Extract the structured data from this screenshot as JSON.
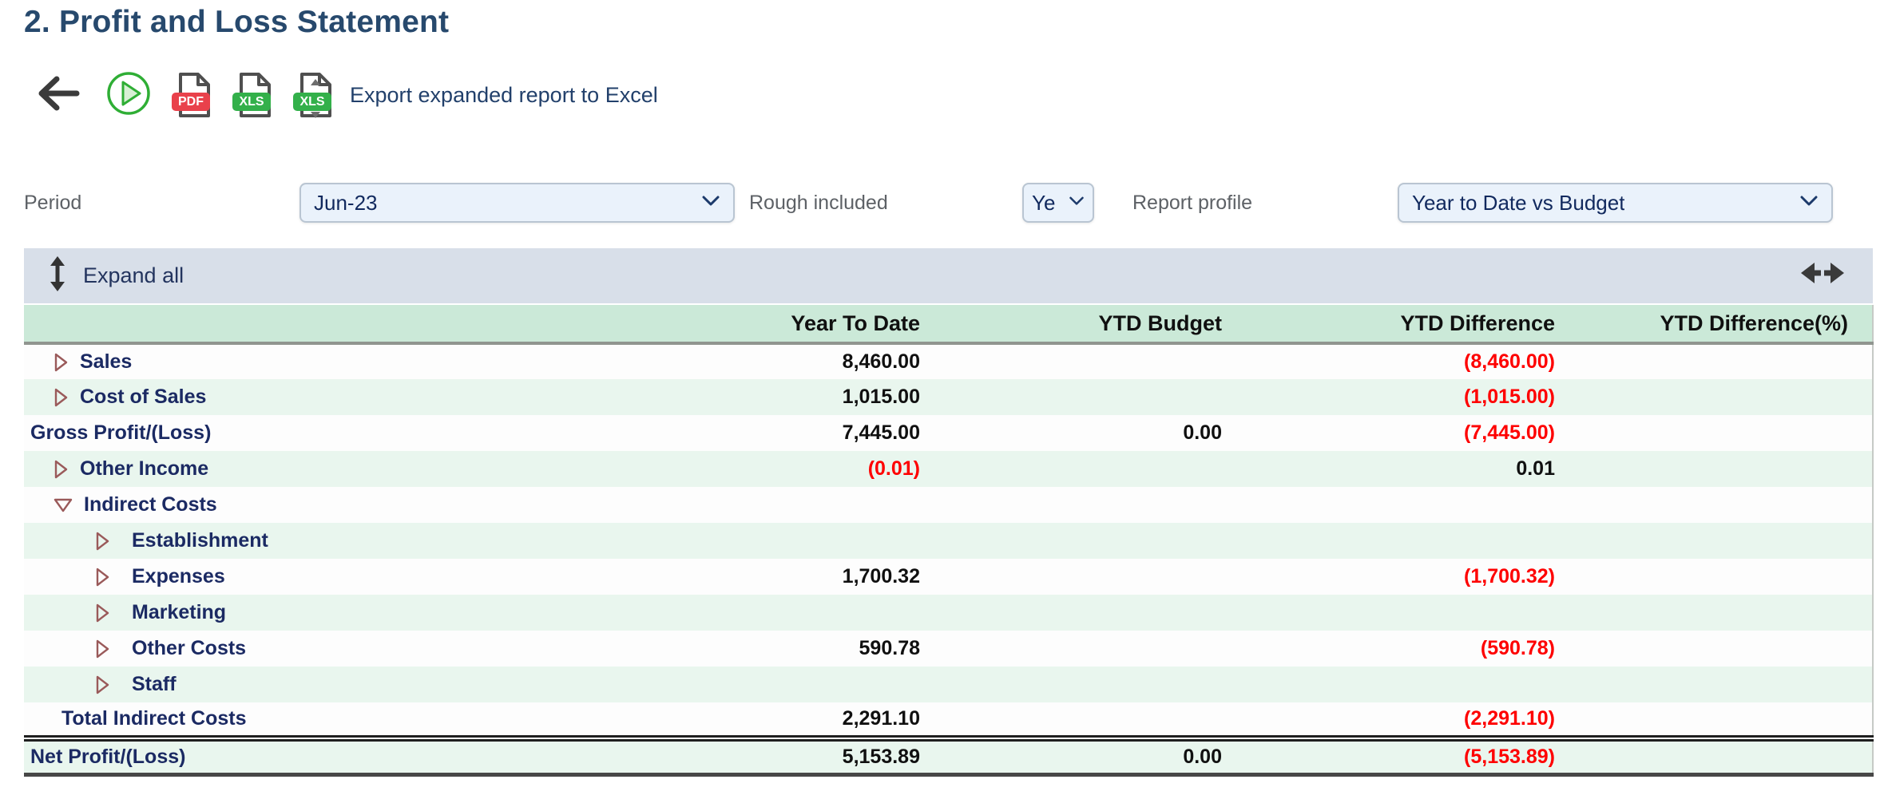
{
  "page": {
    "title": "2. Profit and Loss Statement"
  },
  "toolbar": {
    "export_label": "Export expanded report to Excel",
    "pdf_badge": "PDF",
    "xls_badge": "XLS",
    "xls_expanded_badge": "XLS"
  },
  "filters": {
    "period": {
      "label": "Period",
      "value": "Jun-23"
    },
    "rough_included": {
      "label": "Rough included",
      "value": "Ye"
    },
    "report_profile": {
      "label": "Report profile",
      "value": "Year to Date vs Budget"
    }
  },
  "table": {
    "expand_all_label": "Expand all",
    "columns": [
      "Year To Date",
      "YTD Budget",
      "YTD Difference",
      "YTD Difference(%)"
    ],
    "rows": [
      {
        "label": "Sales",
        "indent": 0,
        "arrow": "right",
        "values": [
          "8,460.00",
          "",
          "(8,460.00)",
          ""
        ]
      },
      {
        "label": "Cost of Sales",
        "indent": 0,
        "arrow": "right",
        "values": [
          "1,015.00",
          "",
          "(1,015.00)",
          ""
        ]
      },
      {
        "label": "Gross Profit/(Loss)",
        "indent": 0,
        "arrow": null,
        "values": [
          "7,445.00",
          "0.00",
          "(7,445.00)",
          ""
        ]
      },
      {
        "label": "Other Income",
        "indent": 0,
        "arrow": "right",
        "values": [
          "(0.01)",
          "",
          "0.01",
          ""
        ]
      },
      {
        "label": "Indirect Costs",
        "indent": 0,
        "arrow": "down",
        "values": [
          "",
          "",
          "",
          ""
        ]
      },
      {
        "label": "Establishment",
        "indent": 1,
        "arrow": "right",
        "values": [
          "",
          "",
          "",
          ""
        ]
      },
      {
        "label": "Expenses",
        "indent": 1,
        "arrow": "right",
        "values": [
          "1,700.32",
          "",
          "(1,700.32)",
          ""
        ]
      },
      {
        "label": "Marketing",
        "indent": 1,
        "arrow": "right",
        "values": [
          "",
          "",
          "",
          ""
        ]
      },
      {
        "label": "Other Costs",
        "indent": 1,
        "arrow": "right",
        "values": [
          "590.78",
          "",
          "(590.78)",
          ""
        ]
      },
      {
        "label": "Staff",
        "indent": 1,
        "arrow": "right",
        "values": [
          "",
          "",
          "",
          ""
        ]
      },
      {
        "label": "Total Indirect Costs",
        "indent": 0,
        "arrow": null,
        "class": "total",
        "values": [
          "2,291.10",
          "",
          "(2,291.10)",
          ""
        ]
      },
      {
        "label": "Net Profit/(Loss)",
        "indent": 0,
        "arrow": null,
        "class": "net",
        "values": [
          "5,153.89",
          "0.00",
          "(5,153.89)",
          ""
        ]
      }
    ]
  },
  "colors": {
    "title_blue": "#27496d",
    "label_navy": "#1b2a63",
    "negative_red": "#fe0000",
    "header_green": "#cbe9d8",
    "row_mint": "#e9f6ee",
    "bar_blue": "#d8dfe9"
  }
}
